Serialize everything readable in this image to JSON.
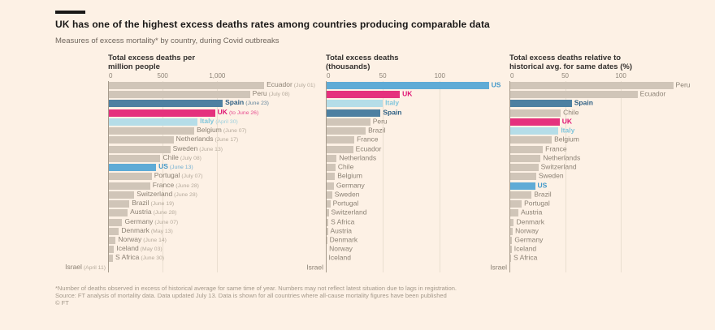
{
  "header": {
    "title": "UK has one of the highest excess deaths rates among countries producing comparable data",
    "subtitle": "Measures of excess mortality* by country, during Covid outbreaks"
  },
  "palette": {
    "tan": "#d0c5b8",
    "pink": "#e5317d",
    "dark_blue": "#4d80a1",
    "light_blue": "#b5dde8",
    "blue": "#5fabd6"
  },
  "label_colors": {
    "tan": "#8b8174",
    "pink": "#df1473",
    "dark_blue": "#2e6084",
    "light_blue": "#7fc5db",
    "blue": "#4198c9"
  },
  "chart_data": [
    {
      "type": "bar",
      "title_lines": [
        "Total excess deaths per",
        "million people"
      ],
      "xlabel": "excess deaths per million",
      "xmax": 1950,
      "grid": true,
      "ticks": [
        {
          "v": 0,
          "label": "0"
        },
        {
          "v": 500,
          "label": "500"
        },
        {
          "v": 1000,
          "label": "1,000"
        }
      ],
      "rows": [
        {
          "country": "Ecuador",
          "date": "(July 01)",
          "value": 1430,
          "color": "tan"
        },
        {
          "country": "Peru",
          "date": "(July 08)",
          "value": 1300,
          "color": "tan"
        },
        {
          "country": "Spain",
          "date": "(June 23)",
          "value": 1050,
          "color": "dark_blue"
        },
        {
          "country": "UK",
          "date": "(to June 26)",
          "value": 980,
          "color": "pink"
        },
        {
          "country": "Italy",
          "date": "(April 30)",
          "value": 820,
          "color": "light_blue"
        },
        {
          "country": "Belgium",
          "date": "(June 07)",
          "value": 790,
          "color": "tan"
        },
        {
          "country": "Netherlands",
          "date": "(June 17)",
          "value": 600,
          "color": "tan"
        },
        {
          "country": "Sweden",
          "date": "(June 13)",
          "value": 570,
          "color": "tan"
        },
        {
          "country": "Chile",
          "date": "(July 08)",
          "value": 480,
          "color": "tan"
        },
        {
          "country": "US",
          "date": "(June 13)",
          "value": 440,
          "color": "blue"
        },
        {
          "country": "Portugal",
          "date": "(July 07)",
          "value": 400,
          "color": "tan"
        },
        {
          "country": "France",
          "date": "(June 28)",
          "value": 385,
          "color": "tan"
        },
        {
          "country": "Switzerland",
          "date": "(June 28)",
          "value": 240,
          "color": "tan"
        },
        {
          "country": "Brazil",
          "date": "(June 19)",
          "value": 195,
          "color": "tan"
        },
        {
          "country": "Austria",
          "date": "(June 28)",
          "value": 180,
          "color": "tan"
        },
        {
          "country": "Germany",
          "date": "(June 07)",
          "value": 130,
          "color": "tan"
        },
        {
          "country": "Denmark",
          "date": "(May 13)",
          "value": 100,
          "color": "tan"
        },
        {
          "country": "Norway",
          "date": "(June 14)",
          "value": 70,
          "color": "tan"
        },
        {
          "country": "Iceland",
          "date": "(May 03)",
          "value": 55,
          "color": "tan"
        },
        {
          "country": "S Africa",
          "date": "(June 30)",
          "value": 45,
          "color": "tan"
        },
        {
          "country": "Israel",
          "date": "(April 11)",
          "value": 8,
          "color": "tan",
          "label_side": "left"
        }
      ]
    },
    {
      "type": "bar",
      "title_lines": [
        "Total excess deaths",
        "(thousands)"
      ],
      "xlabel": "excess deaths (thousands)",
      "xmax": 149,
      "grid": true,
      "ticks": [
        {
          "v": 0,
          "label": "0"
        },
        {
          "v": 50,
          "label": "50"
        },
        {
          "v": 100,
          "label": "100"
        }
      ],
      "rows": [
        {
          "country": "US",
          "date": "",
          "value": 143,
          "color": "blue"
        },
        {
          "country": "UK",
          "date": "",
          "value": 65,
          "color": "pink"
        },
        {
          "country": "Italy",
          "date": "",
          "value": 50,
          "color": "light_blue"
        },
        {
          "country": "Spain",
          "date": "",
          "value": 48,
          "color": "dark_blue"
        },
        {
          "country": "Peru",
          "date": "",
          "value": 39,
          "color": "tan"
        },
        {
          "country": "Brazil",
          "date": "",
          "value": 35,
          "color": "tan"
        },
        {
          "country": "France",
          "date": "",
          "value": 25,
          "color": "tan"
        },
        {
          "country": "Ecuador",
          "date": "",
          "value": 24,
          "color": "tan"
        },
        {
          "country": "Netherlands",
          "date": "",
          "value": 9.5,
          "color": "tan"
        },
        {
          "country": "Chile",
          "date": "",
          "value": 8.5,
          "color": "tan"
        },
        {
          "country": "Belgium",
          "date": "",
          "value": 8,
          "color": "tan"
        },
        {
          "country": "Germany",
          "date": "",
          "value": 7,
          "color": "tan"
        },
        {
          "country": "Sweden",
          "date": "",
          "value": 5.5,
          "color": "tan"
        },
        {
          "country": "Portugal",
          "date": "",
          "value": 4,
          "color": "tan"
        },
        {
          "country": "Switzerland",
          "date": "",
          "value": 2.5,
          "color": "tan"
        },
        {
          "country": "S Africa",
          "date": "",
          "value": 2.2,
          "color": "tan"
        },
        {
          "country": "Austria",
          "date": "",
          "value": 1.8,
          "color": "tan"
        },
        {
          "country": "Denmark",
          "date": "",
          "value": 1.2,
          "color": "tan"
        },
        {
          "country": "Norway",
          "date": "",
          "value": 0.8,
          "color": "tan"
        },
        {
          "country": "Iceland",
          "date": "",
          "value": 0.4,
          "color": "tan"
        },
        {
          "country": "Israel",
          "date": "",
          "value": 0.2,
          "color": "tan",
          "label_side": "left"
        }
      ]
    },
    {
      "type": "bar",
      "title_lines": [
        "Total excess deaths relative to",
        "historical avg. for same dates (%)"
      ],
      "xlabel": "excess deaths vs historical average (%)",
      "xmax": 159,
      "grid": true,
      "ticks": [
        {
          "v": 0,
          "label": "0"
        },
        {
          "v": 50,
          "label": "50"
        },
        {
          "v": 100,
          "label": "100"
        }
      ],
      "rows": [
        {
          "country": "Peru",
          "date": "",
          "value": 147,
          "color": "tan"
        },
        {
          "country": "Ecuador",
          "date": "",
          "value": 115,
          "color": "tan"
        },
        {
          "country": "Spain",
          "date": "",
          "value": 56,
          "color": "dark_blue"
        },
        {
          "country": "Chile",
          "date": "",
          "value": 46,
          "color": "tan"
        },
        {
          "country": "UK",
          "date": "",
          "value": 45,
          "color": "pink"
        },
        {
          "country": "Italy",
          "date": "",
          "value": 44,
          "color": "light_blue"
        },
        {
          "country": "Belgium",
          "date": "",
          "value": 38,
          "color": "tan"
        },
        {
          "country": "France",
          "date": "",
          "value": 30,
          "color": "tan"
        },
        {
          "country": "Netherlands",
          "date": "",
          "value": 28,
          "color": "tan"
        },
        {
          "country": "Switzerland",
          "date": "",
          "value": 26,
          "color": "tan"
        },
        {
          "country": "Sweden",
          "date": "",
          "value": 24,
          "color": "tan"
        },
        {
          "country": "US",
          "date": "",
          "value": 23,
          "color": "blue"
        },
        {
          "country": "Brazil",
          "date": "",
          "value": 20,
          "color": "tan"
        },
        {
          "country": "Portugal",
          "date": "",
          "value": 11,
          "color": "tan"
        },
        {
          "country": "Austria",
          "date": "",
          "value": 8,
          "color": "tan"
        },
        {
          "country": "Denmark",
          "date": "",
          "value": 4,
          "color": "tan"
        },
        {
          "country": "Norway",
          "date": "",
          "value": 3,
          "color": "tan"
        },
        {
          "country": "Germany",
          "date": "",
          "value": 2.5,
          "color": "tan"
        },
        {
          "country": "Iceland",
          "date": "",
          "value": 2,
          "color": "tan"
        },
        {
          "country": "S Africa",
          "date": "",
          "value": 1.5,
          "color": "tan"
        },
        {
          "country": "Israel",
          "date": "",
          "value": 0.3,
          "color": "tan",
          "label_side": "left"
        }
      ]
    }
  ],
  "footer": {
    "note": "*Number of deaths observed in excess of historical average for same time of year. Numbers may not reflect latest situation due to lags in registration.",
    "source": "Source: FT analysis of mortality data. Data updated July 13. Data is shown for all countries where all-cause mortality figures have been published",
    "credit": "© FT"
  }
}
